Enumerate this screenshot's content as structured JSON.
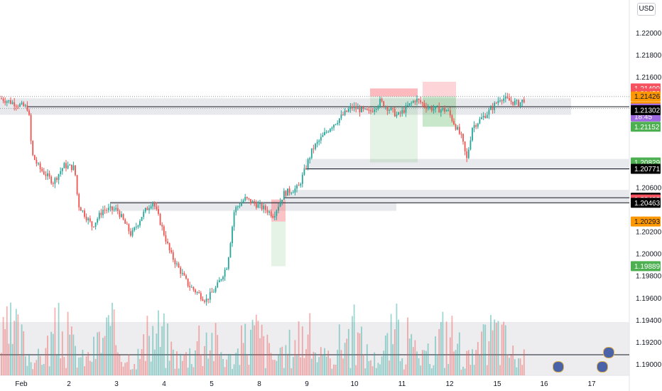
{
  "currency_label": "USD",
  "chart_data": {
    "type": "candlestick",
    "ylim": [
      1.189,
      1.223
    ],
    "xlim": [
      0,
      930
    ],
    "y_ticks": [
      {
        "value": 1.22,
        "label": "1.22000"
      },
      {
        "value": 1.218,
        "label": "1.21800"
      },
      {
        "value": 1.216,
        "label": "1.21600"
      },
      {
        "value": 1.206,
        "label": "1.20600"
      },
      {
        "value": 1.202,
        "label": "1.20200"
      },
      {
        "value": 1.2,
        "label": "1.20000"
      },
      {
        "value": 1.198,
        "label": "1.19800"
      },
      {
        "value": 1.196,
        "label": "1.19600"
      },
      {
        "value": 1.194,
        "label": "1.19400"
      },
      {
        "value": 1.192,
        "label": "1.19200"
      },
      {
        "value": 1.19,
        "label": "1.19000"
      }
    ],
    "x_ticks": [
      "Feb",
      "2",
      "3",
      "4",
      "5",
      "8",
      "9",
      "10",
      "11",
      "12",
      "15",
      "16",
      "17"
    ],
    "price_badges": [
      {
        "value": 1.21499,
        "label": "1.21499",
        "bg": "#f7525f",
        "fg": "#ffffff"
      },
      {
        "value": 1.21453,
        "label": "1.21453",
        "bg": "#f7525f",
        "fg": "#ffffff"
      },
      {
        "value": 1.21426,
        "label": "1.21426",
        "bg": "#ff9800",
        "fg": "#131722"
      },
      {
        "value": 1.21333,
        "label": "1.21333",
        "bg": "#ff9800",
        "fg": "#131722"
      },
      {
        "value": 1.21317,
        "label": "1.21317",
        "bg": "#9c6ade",
        "fg": "#ffffff"
      },
      {
        "value": 1.21245,
        "label": "18:45",
        "bg": "#9c6ade",
        "fg": "#ffffff"
      },
      {
        "value": 1.21302,
        "label": "1.21302",
        "bg": "#000000",
        "fg": "#ffffff"
      },
      {
        "value": 1.21152,
        "label": "1.21152",
        "bg": "#4caf50",
        "fg": "#ffffff"
      },
      {
        "value": 1.20829,
        "label": "1.20829",
        "bg": "#4caf50",
        "fg": "#ffffff"
      },
      {
        "value": 1.20771,
        "label": "1.20771",
        "bg": "#000000",
        "fg": "#ffffff"
      },
      {
        "value": 1.20509,
        "label": "1.20509",
        "bg": "#000000",
        "fg": "#ffffff"
      },
      {
        "value": 1.20493,
        "label": "1.20493",
        "bg": "#f7525f",
        "fg": "#ffffff"
      },
      {
        "value": 1.20463,
        "label": "1.20463",
        "bg": "#000000",
        "fg": "#ffffff"
      },
      {
        "value": 1.20293,
        "label": "1.20293",
        "bg": "#ff9800",
        "fg": "#131722"
      },
      {
        "value": 1.19889,
        "label": "1.19889",
        "bg": "#4caf50",
        "fg": "#ffffff"
      }
    ],
    "horizontal_lines": [
      1.21333,
      1.20771,
      1.20509,
      1.20463
    ],
    "price_path": [
      [
        0,
        1.2141
      ],
      [
        40,
        1.2132
      ],
      [
        45,
        1.209
      ],
      [
        55,
        1.2078
      ],
      [
        75,
        1.2065
      ],
      [
        90,
        1.208
      ],
      [
        105,
        1.2078
      ],
      [
        110,
        1.2045
      ],
      [
        130,
        1.2025
      ],
      [
        145,
        1.204
      ],
      [
        165,
        1.204
      ],
      [
        185,
        1.2017
      ],
      [
        200,
        1.2035
      ],
      [
        215,
        1.2048
      ],
      [
        225,
        1.203
      ],
      [
        240,
        1.2
      ],
      [
        265,
        1.1972
      ],
      [
        290,
        1.1958
      ],
      [
        305,
        1.197
      ],
      [
        320,
        1.199
      ],
      [
        330,
        1.204
      ],
      [
        345,
        1.205
      ],
      [
        375,
        1.204
      ],
      [
        385,
        1.2035
      ],
      [
        400,
        1.2055
      ],
      [
        420,
        1.206
      ],
      [
        440,
        1.2095
      ],
      [
        465,
        1.2115
      ],
      [
        495,
        1.2133
      ],
      [
        520,
        1.2128
      ],
      [
        535,
        1.2138
      ],
      [
        560,
        1.2125
      ],
      [
        585,
        1.214
      ],
      [
        605,
        1.2132
      ],
      [
        630,
        1.213
      ],
      [
        650,
        1.2105
      ],
      [
        657,
        1.2085
      ],
      [
        665,
        1.2115
      ],
      [
        690,
        1.213
      ],
      [
        705,
        1.2142
      ],
      [
        720,
        1.2138
      ],
      [
        730,
        1.2136
      ],
      [
        738,
        1.214
      ]
    ],
    "volume_range": [
      0,
      100
    ]
  }
}
